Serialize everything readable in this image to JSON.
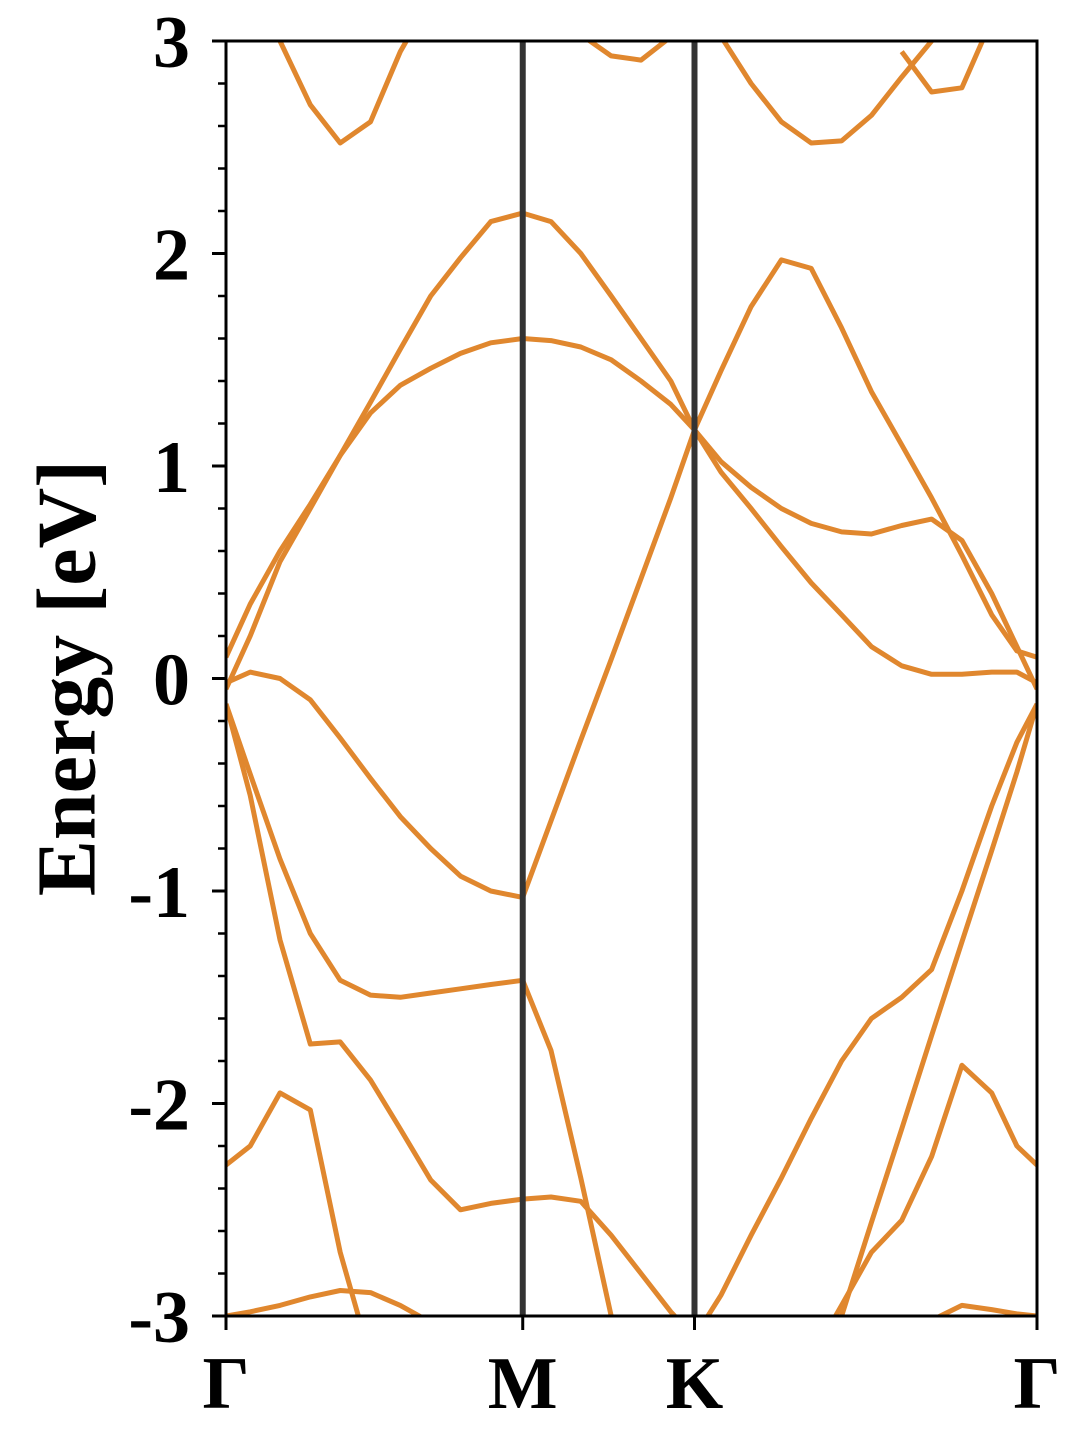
{
  "chart_data": {
    "type": "line",
    "ylabel": "Energy [eV]",
    "color": "#e0872e",
    "x": [
      0,
      0.047,
      0.105,
      0.164,
      0.222,
      0.281,
      0.339,
      0.398,
      0.456,
      0.515,
      0.577,
      0.632,
      0.69,
      0.749,
      0.807,
      0.865,
      0.911,
      0.963,
      1.021,
      1.08,
      1.138,
      1.197,
      1.255,
      1.314,
      1.372,
      1.431,
      1.489,
      1.538,
      1.577
    ],
    "xlim": [
      0,
      1.577
    ],
    "xticks": [
      {
        "value": 0,
        "label": "Γ"
      },
      {
        "value": 0.577,
        "label": "M"
      },
      {
        "value": 0.911,
        "label": "K"
      },
      {
        "value": 1.577,
        "label": "Γ"
      }
    ],
    "ylim": [
      -3,
      3
    ],
    "yticks": [
      3,
      2,
      1,
      0,
      -1,
      -2,
      -3
    ],
    "yminorticks": [
      2.8,
      2.6,
      2.4,
      2.2,
      1.8,
      1.6,
      1.4,
      1.2,
      0.8,
      0.6,
      0.4,
      0.2,
      -0.2,
      -0.4,
      -0.6,
      -0.8,
      -1.2,
      -1.4,
      -1.6,
      -1.8,
      -2.2,
      -2.4,
      -2.6,
      -2.8
    ],
    "series": [
      {
        "values": [
          -2.29,
          -2.2,
          -1.95,
          -2.03,
          -2.7,
          -3.2,
          null,
          null,
          null,
          null,
          null,
          null,
          null,
          null,
          null,
          null,
          null,
          null,
          null,
          null,
          null,
          null,
          null,
          null,
          null,
          null,
          null,
          null,
          null
        ]
      },
      {
        "values": [
          -3.0,
          -2.98,
          -2.95,
          -2.91,
          -2.88,
          -2.89,
          -2.95,
          -3.03,
          -3.1,
          null,
          null,
          null,
          null,
          null,
          null,
          null,
          null,
          null,
          null,
          null,
          null,
          null,
          null,
          null,
          null,
          null,
          null,
          null,
          null
        ]
      },
      {
        "values": [
          -0.12,
          -0.55,
          -1.23,
          -1.72,
          -1.71,
          -1.89,
          -2.12,
          -2.36,
          -2.5,
          -2.47,
          -2.45,
          -2.44,
          -2.46,
          -2.62,
          -2.8,
          -2.98,
          -3.1,
          null,
          null,
          null,
          null,
          null,
          null,
          null,
          null,
          null,
          null,
          null,
          null
        ]
      },
      {
        "values": [
          -0.12,
          -0.45,
          -0.85,
          -1.2,
          -1.42,
          -1.49,
          -1.5,
          -1.48,
          -1.46,
          -1.44,
          -1.42,
          -1.75,
          -2.35,
          -3.0,
          -3.5,
          null,
          null,
          null,
          null,
          null,
          null,
          null,
          null,
          null,
          null,
          null,
          null,
          null,
          null
        ]
      },
      {
        "values": [
          -0.02,
          0.03,
          0.0,
          -0.1,
          -0.28,
          -0.47,
          -0.65,
          -0.8,
          -0.93,
          -1.0,
          -1.03,
          -0.67,
          -0.29,
          0.09,
          0.47,
          0.85,
          1.17,
          1.45,
          1.75,
          1.97,
          1.93,
          1.65,
          1.35,
          1.1,
          0.85,
          0.58,
          0.3,
          0.13,
          0.1
        ]
      },
      {
        "values": [
          0.1,
          0.35,
          0.6,
          0.82,
          1.05,
          1.25,
          1.38,
          1.46,
          1.53,
          1.58,
          1.6,
          1.59,
          1.56,
          1.5,
          1.4,
          1.29,
          1.17,
          1.02,
          0.9,
          0.8,
          0.73,
          0.69,
          0.68,
          0.72,
          0.75,
          0.65,
          0.4,
          0.15,
          -0.05
        ]
      },
      {
        "values": [
          -0.05,
          0.2,
          0.55,
          0.8,
          1.05,
          1.3,
          1.55,
          1.8,
          1.98,
          2.15,
          2.19,
          2.15,
          2.0,
          1.8,
          1.6,
          1.4,
          1.17,
          0.97,
          0.8,
          0.62,
          0.45,
          0.3,
          0.15,
          0.06,
          0.02,
          0.02,
          0.03,
          0.03,
          -0.02
        ]
      },
      {
        "values": [
          null,
          null,
          null,
          null,
          null,
          null,
          null,
          null,
          null,
          null,
          null,
          null,
          null,
          null,
          null,
          null,
          -3.1,
          -2.9,
          -2.62,
          -2.35,
          -2.07,
          -1.8,
          -1.6,
          -1.5,
          -1.37,
          -1.0,
          -0.6,
          -0.3,
          -0.12
        ]
      },
      {
        "values": [
          null,
          null,
          null,
          null,
          null,
          null,
          null,
          null,
          null,
          null,
          null,
          null,
          null,
          null,
          null,
          null,
          null,
          null,
          null,
          null,
          -3.2,
          -2.95,
          -2.7,
          -2.55,
          -2.25,
          -1.82,
          -1.95,
          -2.2,
          -2.29
        ]
      },
      {
        "values": [
          null,
          null,
          null,
          null,
          null,
          null,
          null,
          null,
          null,
          null,
          null,
          null,
          null,
          null,
          null,
          null,
          null,
          null,
          null,
          null,
          null,
          -3.0,
          -2.56,
          -2.12,
          -1.68,
          -1.24,
          -0.81,
          -0.44,
          -0.12
        ]
      },
      {
        "values": [
          null,
          null,
          null,
          null,
          null,
          null,
          null,
          null,
          null,
          null,
          null,
          null,
          null,
          null,
          null,
          null,
          null,
          null,
          null,
          null,
          null,
          null,
          null,
          -3.1,
          -3.02,
          -2.95,
          -2.97,
          -2.99,
          -3.0
        ]
      },
      {
        "values": [
          null,
          3.4,
          3.0,
          2.7,
          2.52,
          2.62,
          2.95,
          3.2,
          null,
          null,
          null,
          null,
          null,
          null,
          null,
          null,
          null,
          null,
          null,
          null,
          null,
          null,
          null,
          null,
          null,
          null,
          null,
          null,
          null
        ]
      },
      {
        "values": [
          null,
          null,
          null,
          null,
          null,
          null,
          null,
          null,
          null,
          null,
          null,
          null,
          3.03,
          2.93,
          2.91,
          3.02,
          null,
          null,
          null,
          null,
          null,
          null,
          null,
          null,
          null,
          null,
          null,
          null,
          null
        ]
      },
      {
        "values": [
          null,
          null,
          null,
          null,
          null,
          null,
          null,
          null,
          null,
          null,
          null,
          null,
          null,
          null,
          null,
          null,
          null,
          3.02,
          2.8,
          2.62,
          2.52,
          2.53,
          2.65,
          2.83,
          3.0,
          3.2,
          null,
          null,
          null
        ]
      },
      {
        "values": [
          null,
          null,
          null,
          null,
          null,
          null,
          null,
          null,
          null,
          null,
          null,
          null,
          null,
          null,
          null,
          null,
          null,
          null,
          null,
          null,
          null,
          null,
          null,
          2.95,
          2.76,
          2.78,
          3.1,
          null,
          null
        ]
      }
    ]
  }
}
